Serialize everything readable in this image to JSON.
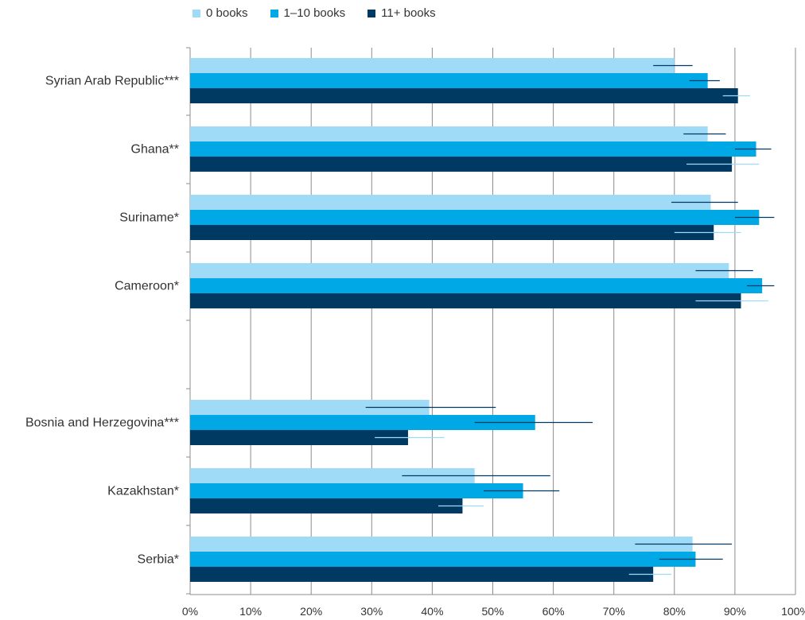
{
  "chart_data": {
    "type": "bar",
    "orientation": "horizontal",
    "title": "",
    "xlabel": "",
    "ylabel": "",
    "xlim": [
      0,
      100
    ],
    "x_unit": "%",
    "grid": "vertical",
    "legend_position": "top",
    "x_ticks": [
      "0%",
      "10%",
      "20%",
      "30%",
      "40%",
      "50%",
      "60%",
      "70%",
      "80%",
      "90%",
      "100%"
    ],
    "categories": [
      "Syrian Arab Republic***",
      "Ghana**",
      "Suriname*",
      "Cameroon*",
      "Bosnia and Herzegovina***",
      "Kazakhstan*",
      "Serbia*"
    ],
    "series": [
      {
        "name": "0 books",
        "color": "#9fdaf6",
        "values": [
          80.0,
          85.5,
          86.0,
          89.0,
          39.5,
          47.0,
          83.0
        ],
        "error": [
          [
            76.5,
            83.0
          ],
          [
            81.5,
            88.5
          ],
          [
            79.5,
            90.5
          ],
          [
            83.5,
            93.0
          ],
          [
            29.0,
            50.5
          ],
          [
            35.0,
            59.5
          ],
          [
            73.5,
            89.5
          ]
        ],
        "error_color": "#003a63"
      },
      {
        "name": "1–10 books",
        "color": "#00a9e6",
        "values": [
          85.5,
          93.5,
          94.0,
          94.5,
          57.0,
          55.0,
          83.5
        ],
        "error": [
          [
            82.5,
            87.5
          ],
          [
            90.0,
            96.0
          ],
          [
            90.0,
            96.5
          ],
          [
            92.0,
            96.5
          ],
          [
            47.0,
            66.5
          ],
          [
            48.5,
            61.0
          ],
          [
            77.5,
            88.0
          ]
        ],
        "error_color": "#003a63"
      },
      {
        "name": "11+ books",
        "color": "#003a63",
        "values": [
          90.5,
          89.5,
          86.5,
          91.0,
          36.0,
          45.0,
          76.5
        ],
        "error": [
          [
            88.0,
            92.5
          ],
          [
            82.0,
            94.0
          ],
          [
            80.0,
            91.0
          ],
          [
            83.5,
            95.5
          ],
          [
            30.5,
            42.0
          ],
          [
            41.0,
            48.5
          ],
          [
            72.5,
            79.5
          ]
        ],
        "error_color": "#9fdaf6"
      }
    ]
  }
}
